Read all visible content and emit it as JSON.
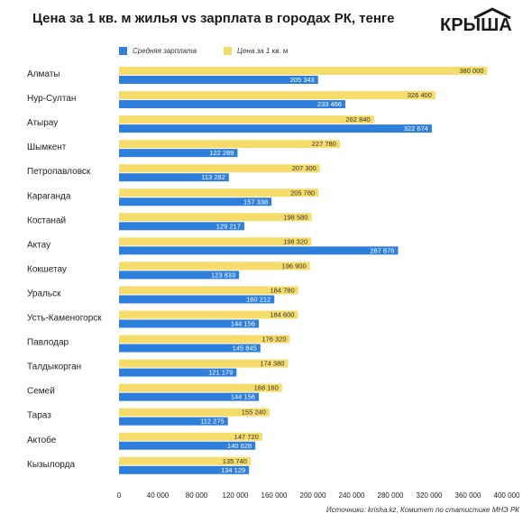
{
  "title": "Цена за 1 кв. м жилья vs зарплата в городах РК, тенге",
  "logo": {
    "text": "КРЫША",
    "icon": "house-roof-icon"
  },
  "source": "Источники: krisha.kz, Комитет по статистике МНЭ РК",
  "colors": {
    "salary": "#2e7fdb",
    "price": "#f6dc6b"
  },
  "chart_data": {
    "type": "bar",
    "orientation": "horizontal",
    "categories": [
      "Алматы",
      "Нур-Султан",
      "Атырау",
      "Шымкент",
      "Петропавловск",
      "Караганда",
      "Костанай",
      "Актау",
      "Кокшетау",
      "Уральск",
      "Усть-Каменогорск",
      "Павлодар",
      "Талдыкорган",
      "Семей",
      "Тараз",
      "Актобе",
      "Кызылорда"
    ],
    "series": [
      {
        "name": "Цена за 1 кв. м",
        "values": [
          380000,
          326400,
          262840,
          227780,
          207300,
          205780,
          198580,
          198320,
          196900,
          184780,
          184600,
          176320,
          174380,
          168160,
          155240,
          147720,
          135740
        ],
        "labels": [
          "380 000",
          "326 400",
          "262 840",
          "227 780",
          "207 300",
          "205 780",
          "198 580",
          "198 320",
          "196 900",
          "184 780",
          "184 600",
          "176 320",
          "174 380",
          "168 160",
          "155 240",
          "147 720",
          "135 740"
        ]
      },
      {
        "name": "Средняя зарплата",
        "values": [
          205343,
          233466,
          322674,
          122289,
          113282,
          157338,
          129217,
          287876,
          123833,
          160212,
          144156,
          145845,
          121179,
          144156,
          112275,
          140628,
          134129
        ],
        "labels": [
          "205 343",
          "233 466",
          "322 674",
          "122 289",
          "113 282",
          "157 338",
          "129 217",
          "287 876",
          "123 833",
          "160 212",
          "144 156",
          "145 845",
          "121 179",
          "144 156",
          "112 275",
          "140 628",
          "134 129"
        ]
      }
    ],
    "legend_order": [
      "Средняя зарплата",
      "Цена за 1 кв. м"
    ],
    "legend_position": "top-left",
    "xlim": [
      0,
      400000
    ],
    "xticks": [
      0,
      40000,
      80000,
      120000,
      160000,
      200000,
      240000,
      280000,
      320000,
      360000,
      400000
    ],
    "xtick_labels": [
      "0",
      "40 000",
      "80 000",
      "120 000",
      "160 000",
      "200 000",
      "240 000",
      "280 000",
      "320 000",
      "360 000",
      "400 000"
    ],
    "grid": false,
    "title": "Цена за 1 кв. м жилья vs зарплата в городах РК, тенге"
  }
}
